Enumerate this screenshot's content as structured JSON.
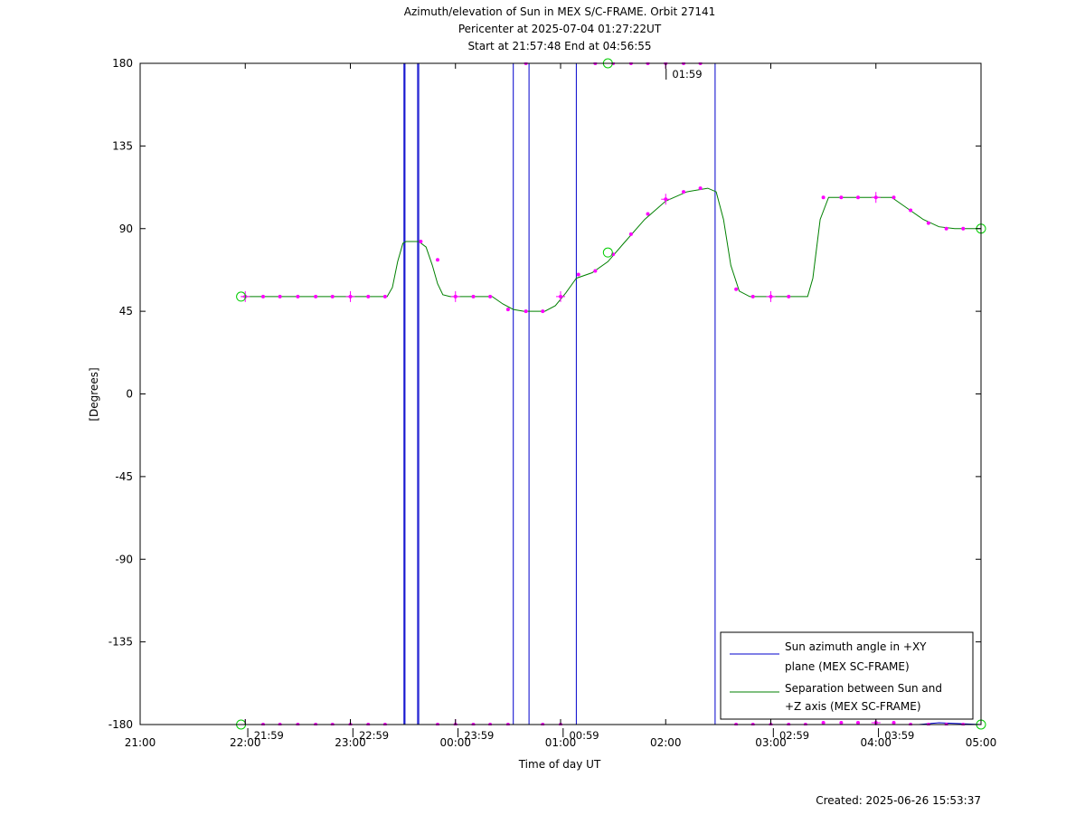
{
  "chart_data": {
    "type": "line",
    "title": "Azimuth/elevation of Sun in MEX S/C-FRAME.  Orbit 27141",
    "subtitle_1": "Pericenter at 2025-07-04 01:27:22UT",
    "subtitle_2": "Start at 21:57:48 End at 04:56:55",
    "xlabel": "Time of day UT",
    "ylabel": "[Degrees]",
    "footer": "Created: 2025-06-26 15:53:37",
    "xlim": [
      -1,
      7
    ],
    "ylim": [
      -180,
      180
    ],
    "x_unit_note": "hours relative to 22:00 on tick labels",
    "x_ticks": [
      {
        "x": -1,
        "label": "21:00"
      },
      {
        "x": 0,
        "label": "22:00"
      },
      {
        "x": 1,
        "label": "23:00"
      },
      {
        "x": 2,
        "label": "00:00"
      },
      {
        "x": 3,
        "label": "01:00"
      },
      {
        "x": 4,
        "label": "02:00"
      },
      {
        "x": 5,
        "label": "03:00"
      },
      {
        "x": 6,
        "label": "04:00"
      },
      {
        "x": 7,
        "label": "05:00"
      }
    ],
    "y_ticks": [
      {
        "y": 180,
        "label": "180"
      },
      {
        "y": 135,
        "label": "135"
      },
      {
        "y": 90,
        "label": "90"
      },
      {
        "y": 45,
        "label": "45"
      },
      {
        "y": 0,
        "label": "0"
      },
      {
        "y": -45,
        "label": "-45"
      },
      {
        "y": -90,
        "label": "-90"
      },
      {
        "y": -135,
        "label": "-135"
      },
      {
        "y": -180,
        "label": "-180"
      }
    ],
    "annotations": [
      {
        "x": 0.05,
        "y": -180,
        "label": "21:59"
      },
      {
        "x": 1.05,
        "y": -180,
        "label": "22:59"
      },
      {
        "x": 2.05,
        "y": -180,
        "label": "23:59"
      },
      {
        "x": 3.05,
        "y": -180,
        "label": "00:59"
      },
      {
        "x": 4.03,
        "y": 180,
        "label": "01:59"
      },
      {
        "x": 5.05,
        "y": -180,
        "label": "02:59"
      },
      {
        "x": 6.05,
        "y": -180,
        "label": "03:59"
      }
    ],
    "legend": {
      "placement": "bottom-right",
      "entries": [
        {
          "label_line1": "Sun azimuth angle in +XY",
          "label_line2": "plane (MEX SC-FRAME)",
          "color": "#0000cc"
        },
        {
          "label_line1": "Separation between Sun and",
          "label_line2": "+Z axis (MEX SC-FRAME)",
          "color": "#008000"
        }
      ]
    },
    "series": [
      {
        "color": "#0000cc",
        "points": [
          [
            -0.04,
            -180
          ],
          [
            1.51,
            -180
          ],
          [
            1.51,
            180
          ],
          [
            1.52,
            180
          ],
          [
            1.52,
            -180
          ],
          [
            1.64,
            -180
          ],
          [
            1.64,
            180
          ],
          [
            1.65,
            180
          ],
          [
            1.65,
            -180
          ],
          [
            2.55,
            -180
          ],
          [
            2.55,
            180
          ],
          [
            2.7,
            180
          ],
          [
            2.7,
            -180
          ],
          [
            3.15,
            -180
          ],
          [
            3.15,
            180
          ],
          [
            4.47,
            180
          ],
          [
            4.47,
            -180
          ],
          [
            6.4,
            -180
          ],
          [
            6.6,
            -179
          ],
          [
            7.0,
            -180
          ]
        ]
      },
      {
        "color": "#008000",
        "points": [
          [
            -0.04,
            53
          ],
          [
            1.35,
            53
          ],
          [
            1.4,
            58
          ],
          [
            1.45,
            72
          ],
          [
            1.5,
            82
          ],
          [
            1.53,
            83
          ],
          [
            1.65,
            83
          ],
          [
            1.72,
            80
          ],
          [
            1.78,
            70
          ],
          [
            1.83,
            60
          ],
          [
            1.88,
            54
          ],
          [
            1.95,
            53
          ],
          [
            2.35,
            53
          ],
          [
            2.45,
            49
          ],
          [
            2.55,
            46
          ],
          [
            2.65,
            45
          ],
          [
            2.85,
            45
          ],
          [
            2.95,
            48
          ],
          [
            3.05,
            55
          ],
          [
            3.15,
            63
          ],
          [
            3.3,
            66
          ],
          [
            3.45,
            72
          ],
          [
            3.6,
            82
          ],
          [
            3.8,
            95
          ],
          [
            4.0,
            105
          ],
          [
            4.2,
            110
          ],
          [
            4.4,
            112
          ],
          [
            4.48,
            110
          ],
          [
            4.55,
            95
          ],
          [
            4.62,
            70
          ],
          [
            4.7,
            56
          ],
          [
            4.8,
            53
          ],
          [
            5.35,
            53
          ],
          [
            5.4,
            63
          ],
          [
            5.47,
            95
          ],
          [
            5.55,
            107
          ],
          [
            6.15,
            107
          ],
          [
            6.3,
            101
          ],
          [
            6.45,
            95
          ],
          [
            6.6,
            91
          ],
          [
            6.75,
            90
          ],
          [
            7.0,
            90
          ]
        ]
      }
    ],
    "markers": {
      "color": "#ff00ff",
      "points": [
        [
          0.0,
          53
        ],
        [
          0.17,
          53
        ],
        [
          0.33,
          53
        ],
        [
          0.5,
          53
        ],
        [
          0.67,
          53
        ],
        [
          0.83,
          53
        ],
        [
          1.0,
          53
        ],
        [
          1.17,
          53
        ],
        [
          1.33,
          53
        ],
        [
          1.67,
          83
        ],
        [
          1.83,
          73
        ],
        [
          2.0,
          53
        ],
        [
          2.17,
          53
        ],
        [
          2.33,
          53
        ],
        [
          2.5,
          46
        ],
        [
          2.67,
          45
        ],
        [
          2.83,
          45
        ],
        [
          3.0,
          53
        ],
        [
          3.17,
          65
        ],
        [
          3.33,
          67
        ],
        [
          3.5,
          76
        ],
        [
          3.67,
          87
        ],
        [
          3.83,
          98
        ],
        [
          4.0,
          106
        ],
        [
          4.17,
          110
        ],
        [
          4.33,
          112
        ],
        [
          4.67,
          57
        ],
        [
          4.83,
          53
        ],
        [
          5.0,
          53
        ],
        [
          5.17,
          53
        ],
        [
          5.5,
          107
        ],
        [
          5.67,
          107
        ],
        [
          5.83,
          107
        ],
        [
          6.0,
          107
        ],
        [
          6.17,
          107
        ],
        [
          6.33,
          100
        ],
        [
          6.5,
          93
        ],
        [
          6.67,
          90
        ],
        [
          6.83,
          90
        ],
        [
          0.17,
          -180
        ],
        [
          0.33,
          -180
        ],
        [
          0.5,
          -180
        ],
        [
          0.67,
          -180
        ],
        [
          0.83,
          -180
        ],
        [
          1.0,
          -180
        ],
        [
          1.17,
          -180
        ],
        [
          1.33,
          -180
        ],
        [
          1.83,
          -180
        ],
        [
          2.0,
          -180
        ],
        [
          2.17,
          -180
        ],
        [
          2.33,
          -180
        ],
        [
          2.5,
          -180
        ],
        [
          2.83,
          -180
        ],
        [
          3.0,
          -180
        ],
        [
          2.67,
          180
        ],
        [
          3.33,
          180
        ],
        [
          3.5,
          180
        ],
        [
          3.67,
          180
        ],
        [
          3.83,
          180
        ],
        [
          4.0,
          180
        ],
        [
          4.17,
          180
        ],
        [
          4.33,
          180
        ],
        [
          4.67,
          -180
        ],
        [
          4.83,
          -180
        ],
        [
          5.0,
          -180
        ],
        [
          5.17,
          -180
        ],
        [
          5.33,
          -180
        ],
        [
          5.5,
          -179
        ],
        [
          5.67,
          -179
        ],
        [
          5.83,
          -179
        ],
        [
          6.0,
          -179
        ],
        [
          6.17,
          -179
        ],
        [
          6.33,
          -180
        ],
        [
          6.5,
          -180
        ],
        [
          6.67,
          -180
        ],
        [
          6.83,
          -180
        ]
      ],
      "hour_crosses": [
        [
          0.0,
          53
        ],
        [
          1.0,
          53
        ],
        [
          2.0,
          53
        ],
        [
          3.0,
          53
        ],
        [
          4.0,
          106
        ],
        [
          5.0,
          53
        ],
        [
          6.0,
          107
        ],
        [
          0.0,
          -180
        ],
        [
          1.0,
          -180
        ],
        [
          2.0,
          -180
        ],
        [
          3.0,
          -180
        ],
        [
          4.0,
          180
        ],
        [
          5.0,
          -180
        ],
        [
          6.0,
          -179
        ]
      ]
    },
    "circle_markers": {
      "color": "#00cc00",
      "points": [
        [
          -0.04,
          53
        ],
        [
          -0.04,
          -180
        ],
        [
          3.45,
          180
        ],
        [
          3.45,
          77
        ],
        [
          7.0,
          90
        ],
        [
          7.0,
          -180
        ]
      ]
    }
  }
}
